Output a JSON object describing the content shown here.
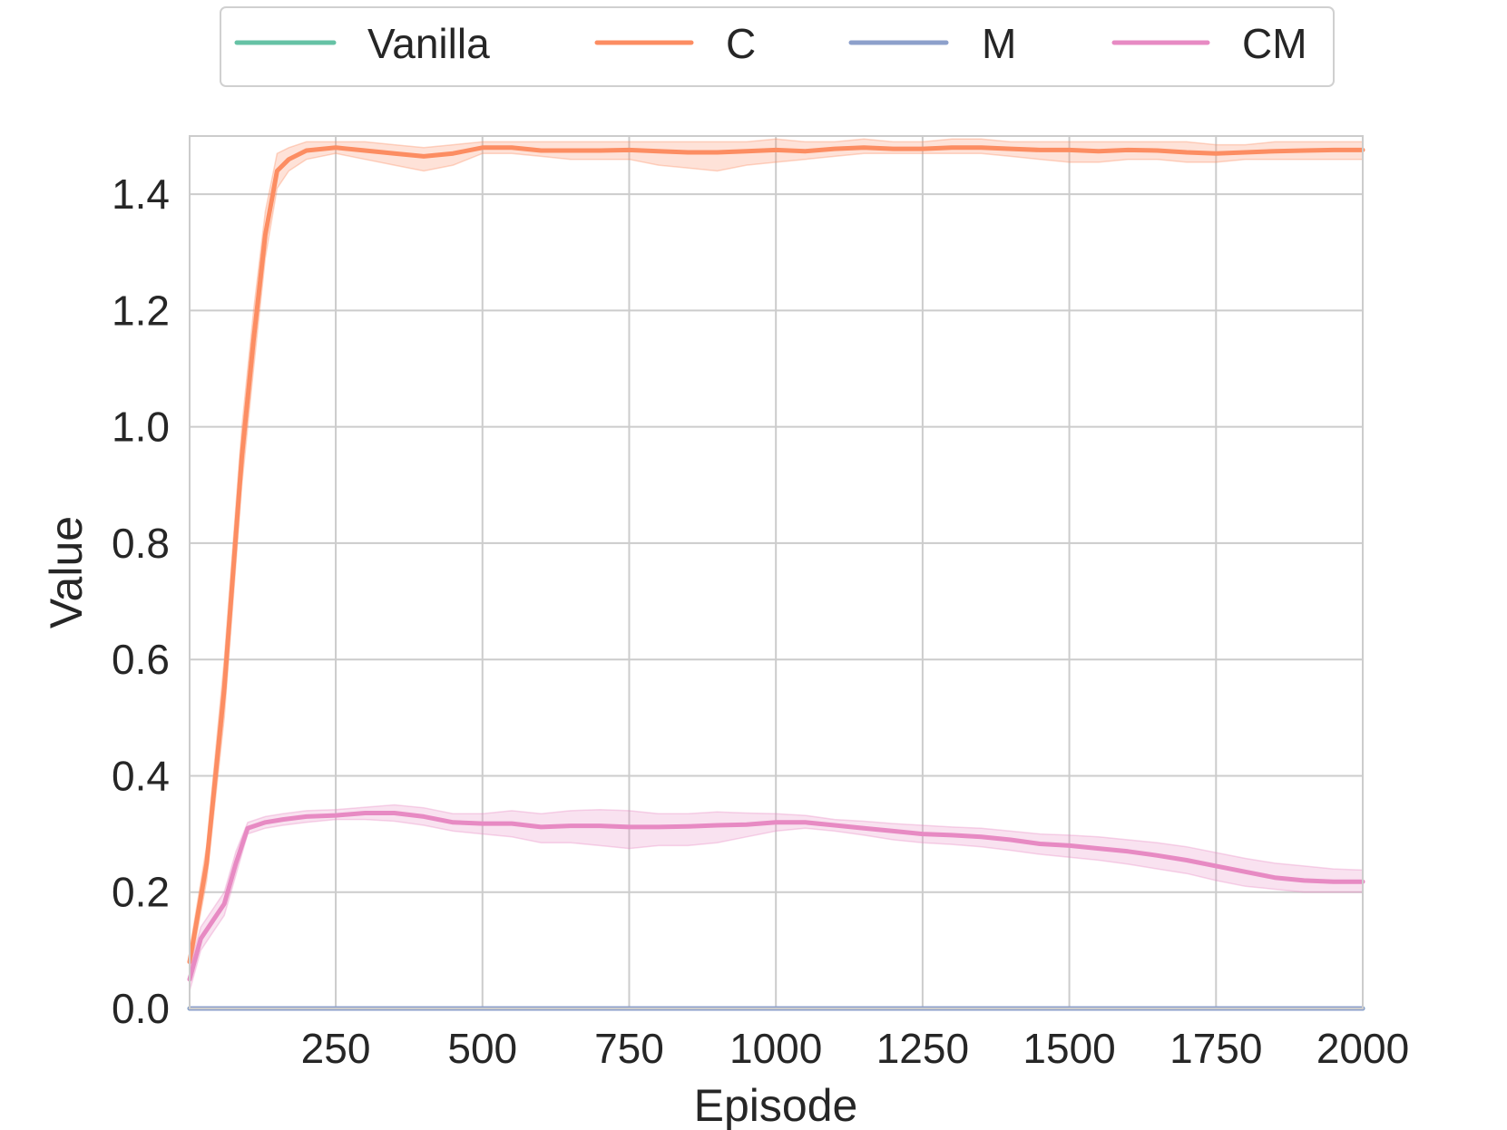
{
  "chart_data": {
    "type": "line",
    "title": "",
    "xlabel": "Episode",
    "ylabel": "Value",
    "xlim": [
      1,
      2000
    ],
    "ylim": [
      0.0,
      1.5
    ],
    "xticks": [
      250,
      500,
      750,
      1000,
      1250,
      1500,
      1750,
      2000
    ],
    "xtick_labels": [
      "250",
      "500",
      "750",
      "1000",
      "1250",
      "1500",
      "1750",
      "2000"
    ],
    "yticks": [
      0.0,
      0.2,
      0.4,
      0.6,
      0.8,
      1.0,
      1.2,
      1.4
    ],
    "ytick_labels": [
      "0.0",
      "0.2",
      "0.4",
      "0.6",
      "0.8",
      "1.0",
      "1.2",
      "1.4"
    ],
    "grid": true,
    "legend_position": "top-center",
    "series": [
      {
        "name": "Vanilla",
        "color": "#66c2a5",
        "x": [
          1,
          250,
          500,
          750,
          1000,
          1250,
          1500,
          1750,
          2000
        ],
        "y": [
          0,
          0,
          0,
          0,
          0,
          0,
          0,
          0,
          0
        ],
        "lower": [
          0,
          0,
          0,
          0,
          0,
          0,
          0,
          0,
          0
        ],
        "upper": [
          0,
          0,
          0,
          0,
          0,
          0,
          0,
          0,
          0
        ]
      },
      {
        "name": "C",
        "color": "#fc8d62",
        "x": [
          1,
          30,
          60,
          90,
          110,
          130,
          150,
          170,
          200,
          250,
          300,
          350,
          400,
          450,
          500,
          550,
          600,
          650,
          700,
          750,
          800,
          850,
          900,
          950,
          1000,
          1050,
          1100,
          1150,
          1200,
          1250,
          1300,
          1350,
          1400,
          1450,
          1500,
          1550,
          1600,
          1650,
          1700,
          1750,
          1800,
          1850,
          1900,
          1950,
          2000
        ],
        "y": [
          0.08,
          0.25,
          0.55,
          0.95,
          1.15,
          1.33,
          1.44,
          1.46,
          1.475,
          1.48,
          1.475,
          1.47,
          1.465,
          1.47,
          1.48,
          1.48,
          1.475,
          1.475,
          1.475,
          1.476,
          1.474,
          1.472,
          1.472,
          1.474,
          1.476,
          1.474,
          1.478,
          1.48,
          1.478,
          1.478,
          1.48,
          1.48,
          1.478,
          1.476,
          1.476,
          1.474,
          1.476,
          1.475,
          1.472,
          1.47,
          1.472,
          1.474,
          1.475,
          1.476,
          1.476
        ],
        "lower": [
          0.06,
          0.22,
          0.5,
          0.9,
          1.1,
          1.29,
          1.41,
          1.44,
          1.46,
          1.47,
          1.46,
          1.45,
          1.44,
          1.45,
          1.47,
          1.47,
          1.465,
          1.46,
          1.46,
          1.46,
          1.45,
          1.445,
          1.44,
          1.45,
          1.455,
          1.46,
          1.465,
          1.47,
          1.47,
          1.47,
          1.47,
          1.47,
          1.465,
          1.46,
          1.455,
          1.455,
          1.46,
          1.46,
          1.455,
          1.455,
          1.46,
          1.46,
          1.46,
          1.46,
          1.46
        ],
        "upper": [
          0.1,
          0.28,
          0.6,
          1.0,
          1.2,
          1.37,
          1.47,
          1.48,
          1.49,
          1.49,
          1.49,
          1.485,
          1.48,
          1.485,
          1.49,
          1.49,
          1.49,
          1.49,
          1.49,
          1.49,
          1.49,
          1.49,
          1.49,
          1.49,
          1.495,
          1.49,
          1.49,
          1.495,
          1.49,
          1.49,
          1.495,
          1.495,
          1.49,
          1.49,
          1.49,
          1.49,
          1.49,
          1.49,
          1.49,
          1.485,
          1.485,
          1.49,
          1.49,
          1.49,
          1.49
        ]
      },
      {
        "name": "M",
        "color": "#8da0cb",
        "x": [
          1,
          250,
          500,
          750,
          1000,
          1250,
          1500,
          1750,
          2000
        ],
        "y": [
          0,
          0,
          0,
          0,
          0,
          0,
          0,
          0,
          0
        ],
        "lower": [
          0,
          0,
          0,
          0,
          0,
          0,
          0,
          0,
          0
        ],
        "upper": [
          0,
          0,
          0,
          0,
          0,
          0,
          0,
          0,
          0
        ]
      },
      {
        "name": "CM",
        "color": "#e78ac3",
        "x": [
          1,
          20,
          40,
          60,
          80,
          100,
          130,
          160,
          200,
          250,
          300,
          350,
          400,
          450,
          500,
          550,
          600,
          650,
          700,
          750,
          800,
          850,
          900,
          950,
          1000,
          1050,
          1100,
          1150,
          1200,
          1250,
          1300,
          1350,
          1400,
          1450,
          1500,
          1550,
          1600,
          1650,
          1700,
          1750,
          1800,
          1850,
          1900,
          1950,
          2000
        ],
        "y": [
          0.05,
          0.12,
          0.15,
          0.18,
          0.25,
          0.31,
          0.32,
          0.325,
          0.33,
          0.332,
          0.336,
          0.336,
          0.33,
          0.32,
          0.318,
          0.318,
          0.312,
          0.314,
          0.314,
          0.312,
          0.312,
          0.313,
          0.315,
          0.316,
          0.32,
          0.32,
          0.315,
          0.31,
          0.305,
          0.3,
          0.298,
          0.295,
          0.29,
          0.283,
          0.28,
          0.275,
          0.27,
          0.263,
          0.255,
          0.245,
          0.235,
          0.225,
          0.22,
          0.218,
          0.218
        ],
        "lower": [
          0.03,
          0.1,
          0.13,
          0.16,
          0.23,
          0.3,
          0.31,
          0.315,
          0.32,
          0.325,
          0.325,
          0.322,
          0.315,
          0.305,
          0.3,
          0.295,
          0.285,
          0.285,
          0.28,
          0.275,
          0.28,
          0.28,
          0.285,
          0.295,
          0.305,
          0.31,
          0.305,
          0.298,
          0.29,
          0.285,
          0.282,
          0.278,
          0.272,
          0.265,
          0.26,
          0.255,
          0.248,
          0.24,
          0.232,
          0.22,
          0.21,
          0.205,
          0.2,
          0.2,
          0.2
        ],
        "upper": [
          0.07,
          0.14,
          0.17,
          0.2,
          0.27,
          0.32,
          0.33,
          0.335,
          0.34,
          0.342,
          0.346,
          0.35,
          0.345,
          0.335,
          0.335,
          0.34,
          0.335,
          0.34,
          0.342,
          0.34,
          0.335,
          0.335,
          0.338,
          0.336,
          0.335,
          0.332,
          0.325,
          0.322,
          0.318,
          0.315,
          0.312,
          0.31,
          0.305,
          0.3,
          0.298,
          0.295,
          0.29,
          0.285,
          0.278,
          0.268,
          0.258,
          0.25,
          0.245,
          0.24,
          0.238
        ]
      }
    ]
  }
}
